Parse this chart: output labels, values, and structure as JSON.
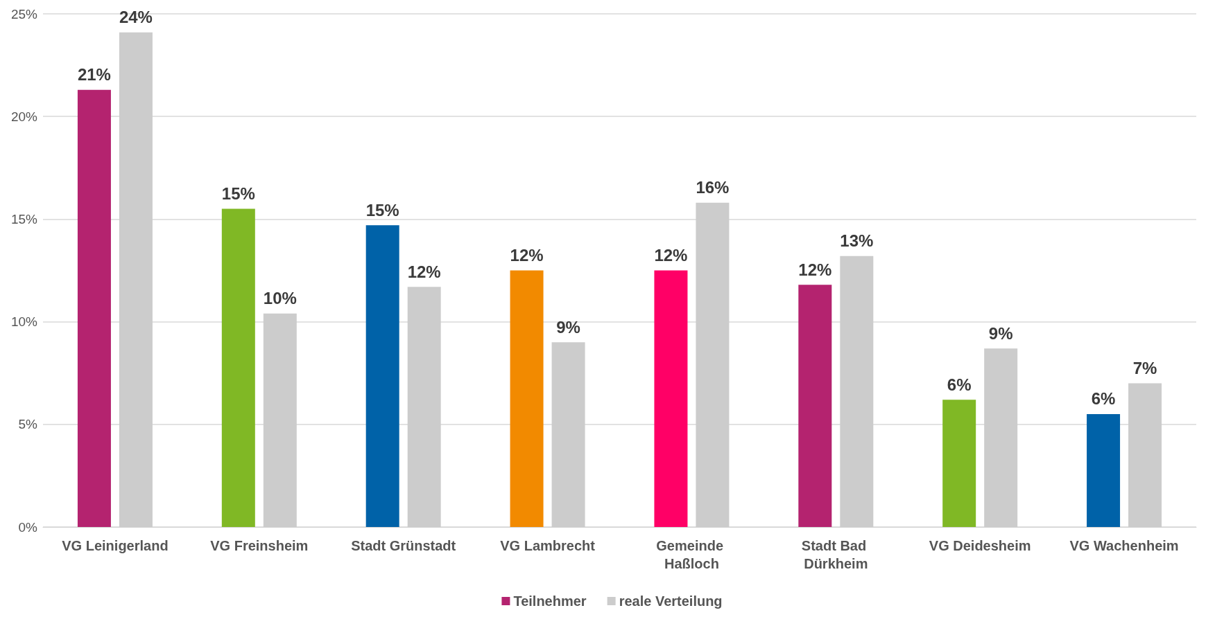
{
  "chart_data": {
    "type": "bar",
    "categories": [
      "VG Leinigerland",
      "VG Freinsheim",
      "Stadt Grünstadt",
      "VG Lambrecht",
      "Gemeinde Haßloch",
      "Stadt Bad Dürkheim",
      "VG Deidesheim",
      "VG Wachenheim"
    ],
    "series": [
      {
        "name": "Teilnehmer",
        "color": "#b4236f",
        "colors": [
          "#b4236f",
          "#80b825",
          "#0062a8",
          "#f28a00",
          "#ff0066",
          "#b4236f",
          "#80b825",
          "#0062a8"
        ],
        "values": [
          21.3,
          15.5,
          14.7,
          12.5,
          12.5,
          11.8,
          6.2,
          5.5
        ],
        "value_labels": [
          "21%",
          "15%",
          "15%",
          "12%",
          "12%",
          "12%",
          "6%",
          "6%"
        ]
      },
      {
        "name": "reale Verteilung",
        "color": "#cccccc",
        "values": [
          24.1,
          10.4,
          11.7,
          9.0,
          15.8,
          13.2,
          8.7,
          7.0
        ],
        "value_labels": [
          "24%",
          "10%",
          "12%",
          "9%",
          "16%",
          "13%",
          "9%",
          "7%"
        ]
      }
    ],
    "ylim": [
      0,
      25
    ],
    "yticks": [
      {
        "value": 0,
        "label": "0%"
      },
      {
        "value": 5,
        "label": "5%"
      },
      {
        "value": 10,
        "label": "10%"
      },
      {
        "value": 15,
        "label": "15%"
      },
      {
        "value": 20,
        "label": "20%"
      },
      {
        "value": 25,
        "label": "25%"
      }
    ],
    "grid": "y",
    "legend": "bottom"
  }
}
